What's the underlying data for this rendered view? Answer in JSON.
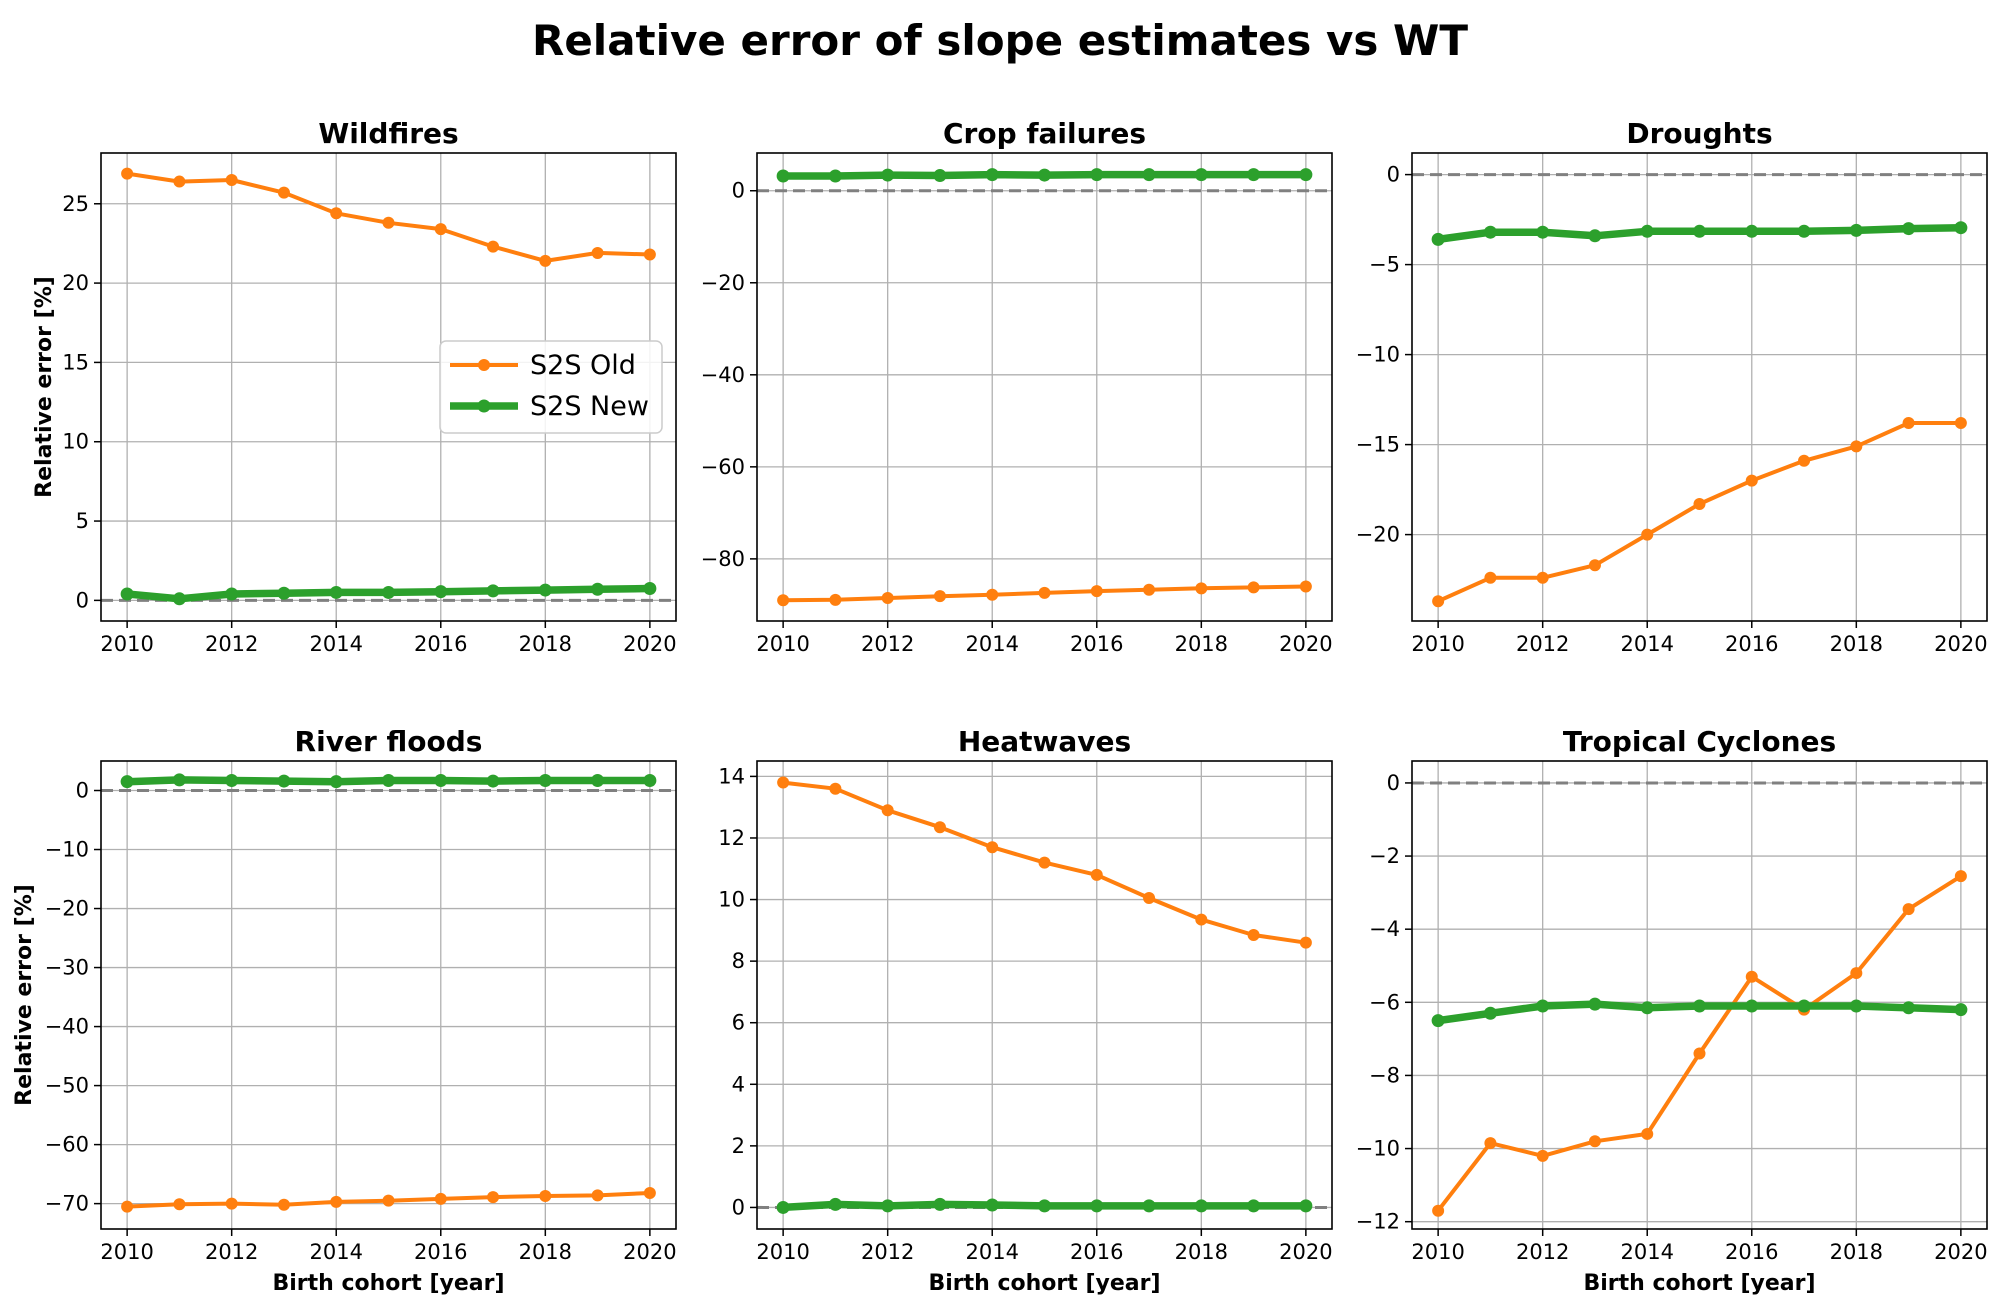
{
  "figure": {
    "title": "Relative error of slope estimates vs WT"
  },
  "colors": {
    "old": "#ff7f0e",
    "new": "#2ca02c",
    "zero_line": "#808080",
    "grid": "#b0b0b0"
  },
  "chart_data": [
    {
      "type": "line",
      "title": "Wildfires",
      "xlabel": "",
      "ylabel": "Relative error [%]",
      "xlim": [
        2009.5,
        2020.5
      ],
      "ylim": [
        -1.3,
        28.2
      ],
      "yticks": [
        0,
        5,
        10,
        15,
        20,
        25
      ],
      "xticks": [
        2010,
        2012,
        2014,
        2016,
        2018,
        2020
      ],
      "grid": true,
      "legend": "center-right",
      "x": [
        2010,
        2011,
        2012,
        2013,
        2014,
        2015,
        2016,
        2017,
        2018,
        2019,
        2020
      ],
      "series": [
        {
          "name": "S2S Old",
          "values": [
            26.9,
            26.4,
            26.5,
            25.7,
            24.4,
            23.8,
            23.4,
            22.3,
            21.4,
            21.9,
            21.8
          ]
        },
        {
          "name": "S2S New",
          "values": [
            0.4,
            0.1,
            0.4,
            0.45,
            0.5,
            0.5,
            0.55,
            0.6,
            0.65,
            0.7,
            0.75
          ]
        }
      ]
    },
    {
      "type": "line",
      "title": "Crop failures",
      "xlabel": "",
      "ylabel": "",
      "xlim": [
        2009.5,
        2020.5
      ],
      "ylim": [
        -93.5,
        8.2
      ],
      "yticks": [
        -80,
        -60,
        -40,
        -20,
        0
      ],
      "xticks": [
        2010,
        2012,
        2014,
        2016,
        2018,
        2020
      ],
      "grid": true,
      "legend": "",
      "x": [
        2010,
        2011,
        2012,
        2013,
        2014,
        2015,
        2016,
        2017,
        2018,
        2019,
        2020
      ],
      "series": [
        {
          "name": "S2S Old",
          "values": [
            -89.0,
            -88.9,
            -88.5,
            -88.1,
            -87.8,
            -87.4,
            -87.0,
            -86.7,
            -86.4,
            -86.2,
            -86.0
          ]
        },
        {
          "name": "S2S New",
          "values": [
            3.2,
            3.2,
            3.4,
            3.3,
            3.5,
            3.4,
            3.5,
            3.5,
            3.5,
            3.5,
            3.5
          ]
        }
      ]
    },
    {
      "type": "line",
      "title": "Droughts",
      "xlabel": "",
      "ylabel": "",
      "xlim": [
        2009.5,
        2020.5
      ],
      "ylim": [
        -24.8,
        1.2
      ],
      "yticks": [
        -20,
        -15,
        -10,
        -5,
        0
      ],
      "xticks": [
        2010,
        2012,
        2014,
        2016,
        2018,
        2020
      ],
      "grid": true,
      "legend": "",
      "x": [
        2010,
        2011,
        2012,
        2013,
        2014,
        2015,
        2016,
        2017,
        2018,
        2019,
        2020
      ],
      "series": [
        {
          "name": "S2S Old",
          "values": [
            -23.7,
            -22.4,
            -22.4,
            -21.7,
            -20.0,
            -18.3,
            -17.0,
            -15.9,
            -15.1,
            -13.8,
            -13.8
          ]
        },
        {
          "name": "S2S New",
          "values": [
            -3.6,
            -3.2,
            -3.2,
            -3.4,
            -3.15,
            -3.15,
            -3.15,
            -3.15,
            -3.1,
            -3.0,
            -2.95
          ]
        }
      ]
    },
    {
      "type": "line",
      "title": "River floods",
      "xlabel": "Birth cohort [year]",
      "ylabel": "Relative error [%]",
      "xlim": [
        2009.5,
        2020.5
      ],
      "ylim": [
        -74.3,
        5.0
      ],
      "yticks": [
        -70,
        -60,
        -50,
        -40,
        -30,
        -20,
        -10,
        0
      ],
      "xticks": [
        2010,
        2012,
        2014,
        2016,
        2018,
        2020
      ],
      "grid": true,
      "legend": "",
      "x": [
        2010,
        2011,
        2012,
        2013,
        2014,
        2015,
        2016,
        2017,
        2018,
        2019,
        2020
      ],
      "series": [
        {
          "name": "S2S Old",
          "values": [
            -70.5,
            -70.1,
            -70.0,
            -70.2,
            -69.7,
            -69.5,
            -69.2,
            -68.9,
            -68.7,
            -68.6,
            -68.2
          ]
        },
        {
          "name": "S2S New",
          "values": [
            1.5,
            1.8,
            1.7,
            1.6,
            1.5,
            1.7,
            1.7,
            1.6,
            1.7,
            1.7,
            1.7
          ]
        }
      ]
    },
    {
      "type": "line",
      "title": "Heatwaves",
      "xlabel": "Birth cohort [year]",
      "ylabel": "",
      "xlim": [
        2009.5,
        2020.5
      ],
      "ylim": [
        -0.7,
        14.5
      ],
      "yticks": [
        0,
        2,
        4,
        6,
        8,
        10,
        12,
        14
      ],
      "xticks": [
        2010,
        2012,
        2014,
        2016,
        2018,
        2020
      ],
      "grid": true,
      "legend": "",
      "x": [
        2010,
        2011,
        2012,
        2013,
        2014,
        2015,
        2016,
        2017,
        2018,
        2019,
        2020
      ],
      "series": [
        {
          "name": "S2S Old",
          "values": [
            13.8,
            13.6,
            12.9,
            12.35,
            11.7,
            11.2,
            10.8,
            10.05,
            9.35,
            8.85,
            8.6
          ]
        },
        {
          "name": "S2S New",
          "values": [
            0.0,
            0.1,
            0.05,
            0.1,
            0.08,
            0.05,
            0.05,
            0.05,
            0.05,
            0.05,
            0.05
          ]
        }
      ]
    },
    {
      "type": "line",
      "title": "Tropical Cyclones",
      "xlabel": "Birth cohort [year]",
      "ylabel": "",
      "xlim": [
        2009.5,
        2020.5
      ],
      "ylim": [
        -12.2,
        0.6
      ],
      "yticks": [
        -12,
        -10,
        -8,
        -6,
        -4,
        -2,
        0
      ],
      "xticks": [
        2010,
        2012,
        2014,
        2016,
        2018,
        2020
      ],
      "grid": true,
      "legend": "",
      "x": [
        2010,
        2011,
        2012,
        2013,
        2014,
        2015,
        2016,
        2017,
        2018,
        2019,
        2020
      ],
      "series": [
        {
          "name": "S2S Old",
          "values": [
            -11.7,
            -9.85,
            -10.2,
            -9.8,
            -9.6,
            -7.4,
            -5.3,
            -6.2,
            -5.2,
            -3.45,
            -2.55
          ]
        },
        {
          "name": "S2S New",
          "values": [
            -6.5,
            -6.3,
            -6.1,
            -6.05,
            -6.15,
            -6.1,
            -6.1,
            -6.1,
            -6.1,
            -6.15,
            -6.2
          ]
        }
      ]
    }
  ]
}
